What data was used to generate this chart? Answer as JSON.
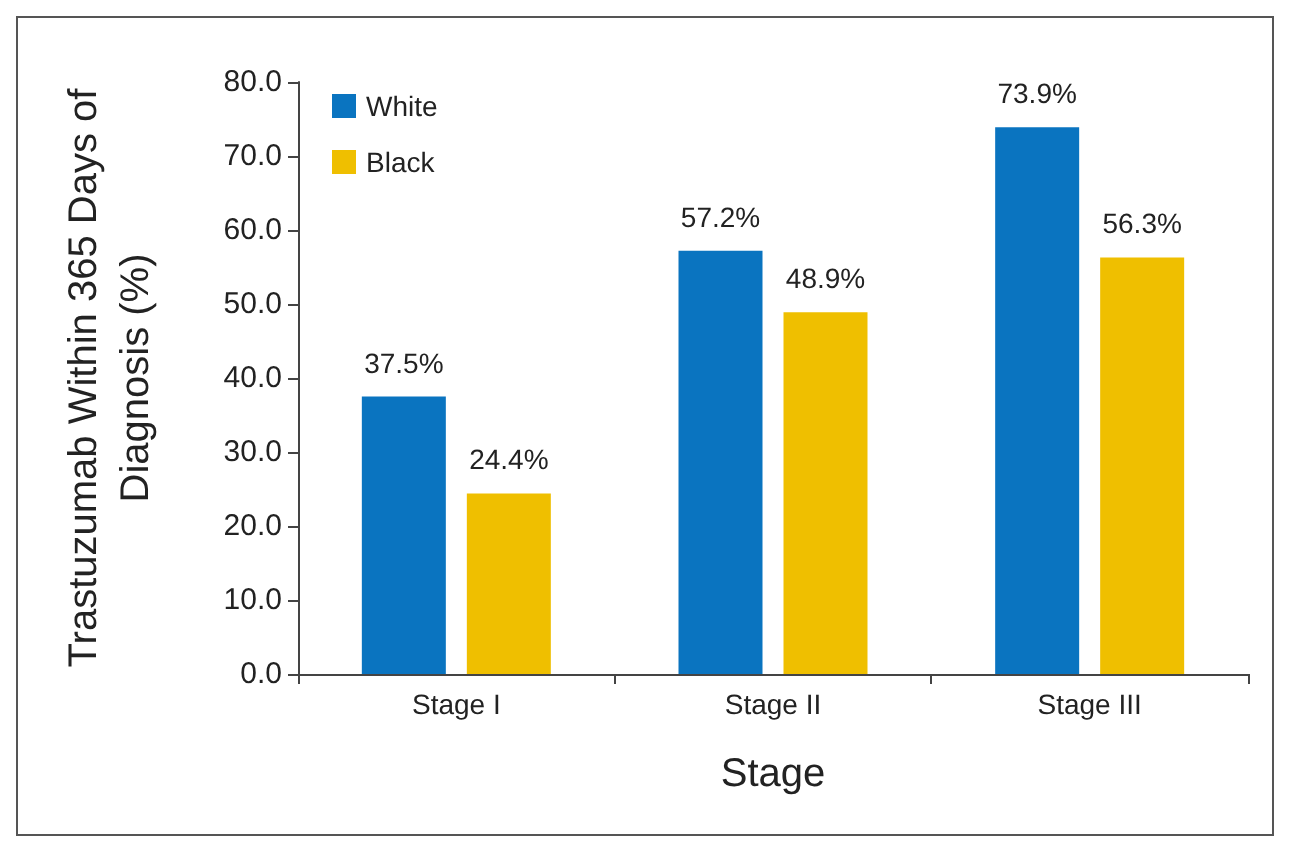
{
  "chart_data": {
    "type": "bar",
    "xlabel": "Stage",
    "ylabel": "Trastuzumab Within 365 Days of Diagnosis (%)",
    "categories": [
      "Stage I",
      "Stage II",
      "Stage III"
    ],
    "series": [
      {
        "name": "White",
        "color": "#0a74c0",
        "values": [
          37.5,
          57.2,
          73.9
        ],
        "value_labels": [
          "37.5%",
          "57.2%",
          "73.9%"
        ]
      },
      {
        "name": "Black",
        "color": "#efbf00",
        "values": [
          24.4,
          48.9,
          56.3
        ],
        "value_labels": [
          "24.4%",
          "48.9%",
          "56.3%"
        ]
      }
    ],
    "ylim": [
      0,
      80
    ],
    "yticks": [
      {
        "value": 0,
        "label": "0.0"
      },
      {
        "value": 10,
        "label": "10.0"
      },
      {
        "value": 20,
        "label": "20.0"
      },
      {
        "value": 30,
        "label": "30.0"
      },
      {
        "value": 40,
        "label": "40.0"
      },
      {
        "value": 50,
        "label": "50.0"
      },
      {
        "value": 60,
        "label": "60.0"
      },
      {
        "value": 70,
        "label": "70.0"
      },
      {
        "value": 80,
        "label": "80.0"
      }
    ],
    "grid": false,
    "legend": "top left"
  }
}
